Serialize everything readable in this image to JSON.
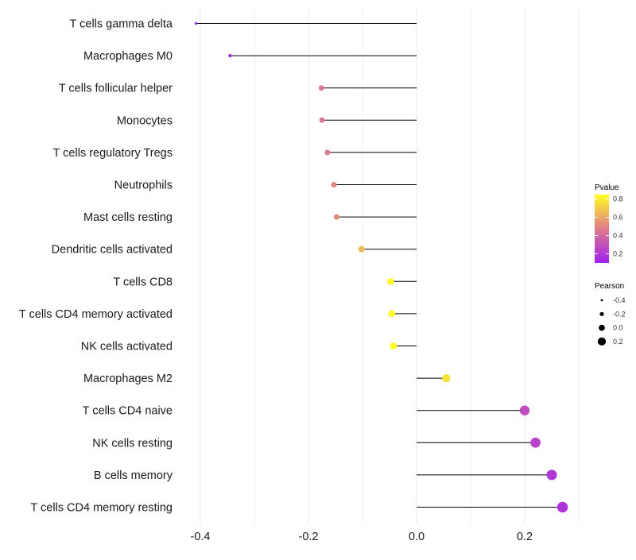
{
  "chart_data": {
    "type": "lollipop",
    "title": "",
    "xlabel": "",
    "ylabel": "",
    "xlim": [
      -0.43,
      0.3
    ],
    "x_ticks": [
      -0.4,
      -0.2,
      0.0,
      0.2
    ],
    "x_tick_labels": [
      "-0.4",
      "-0.2",
      "0.0",
      "0.2"
    ],
    "grid": true,
    "categories": [
      "T cells gamma delta",
      "Macrophages M0",
      "T cells follicular helper",
      "Monocytes",
      "T cells regulatory  Tregs",
      "Neutrophils",
      "Mast cells resting",
      "Dendritic cells activated",
      "T cells CD8",
      "T cells CD4 memory activated",
      "NK cells activated",
      "Macrophages M2",
      "T cells CD4 naive",
      "NK cells resting",
      "B cells memory",
      "T cells CD4 memory resting"
    ],
    "pearson": [
      -0.408,
      -0.345,
      -0.176,
      -0.175,
      -0.165,
      -0.153,
      -0.148,
      -0.102,
      -0.048,
      -0.046,
      -0.043,
      0.055,
      0.2,
      0.22,
      0.25,
      0.27
    ],
    "pvalue": [
      0.05,
      0.12,
      0.45,
      0.45,
      0.47,
      0.5,
      0.52,
      0.65,
      0.83,
      0.84,
      0.85,
      0.78,
      0.28,
      0.24,
      0.2,
      0.18
    ],
    "legend": {
      "color": {
        "title": "Pvalue",
        "range": [
          0.1,
          0.85
        ],
        "ticks": [
          0.2,
          0.4,
          0.6,
          0.8
        ],
        "tick_labels": [
          "0.2",
          "0.4",
          "0.6",
          "0.8"
        ]
      },
      "size": {
        "title": "Pearson",
        "values": [
          -0.4,
          -0.2,
          0.0,
          0.2
        ],
        "labels": [
          "-0.4",
          "-0.2",
          "0.0",
          "0.2"
        ]
      },
      "placement": "right"
    },
    "colors": {
      "low": "#a020f0",
      "mid": "#e07b8a",
      "high": "#ffff20",
      "segment": "#000000",
      "grid": "#ebebeb"
    }
  }
}
